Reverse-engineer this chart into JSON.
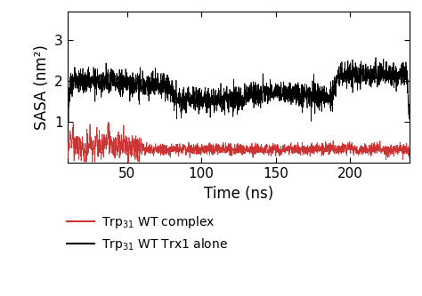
{
  "xlabel": "Time (ns)",
  "ylabel": "SASA (nm²)",
  "xlim": [
    10,
    240
  ],
  "ylim": [
    0,
    3.7
  ],
  "xticks": [
    50,
    100,
    150,
    200
  ],
  "yticks": [
    1,
    2,
    3
  ],
  "black_line_color": "#000000",
  "red_line_color": "#cc3333",
  "background_color": "#ffffff",
  "legend_labels": [
    "Trp$_{31}$ WT complex",
    "Trp$_{31}$ WT Trx1 alone"
  ],
  "legend_colors": [
    "#cc3333",
    "#000000"
  ],
  "n_points": 2300,
  "time_start": 10,
  "time_end": 240,
  "linewidth": 0.55,
  "tick_fontsize": 11,
  "label_fontsize": 12,
  "legend_fontsize": 10
}
